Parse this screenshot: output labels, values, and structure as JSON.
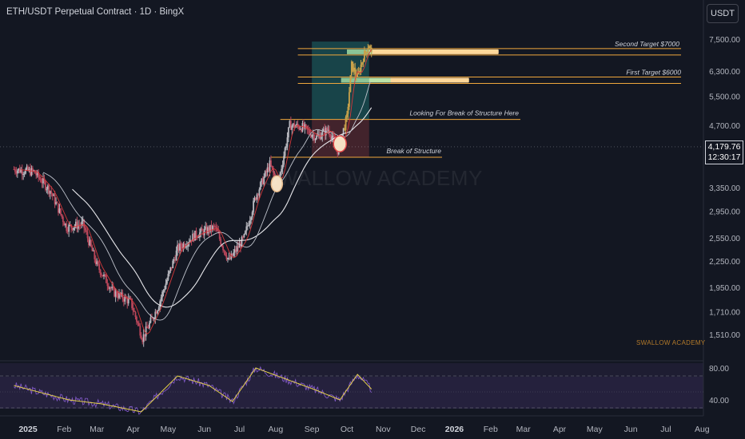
{
  "header": {
    "title": "ETH/USDT Perpetual Contract · 1D · BingX",
    "currency": "USDT"
  },
  "last_price": {
    "value": "4,179.76",
    "countdown": "12:30:17"
  },
  "watermark": "SWALLOW ACADEMY",
  "signature": "SWALLOW ACADEMY",
  "annotations": {
    "second_target": "Second Target $7000",
    "first_target": "First Target $6000",
    "looking_bos": "Looking For Break of Structure Here",
    "bos": "Break of Structure"
  },
  "colors": {
    "background": "#131722",
    "up": "#26a69a",
    "down": "#ef5350",
    "target_line": "#f0a73c",
    "rsi": "#7e57c2",
    "rsi_ma": "#e6d24a"
  },
  "chart_data": [
    {
      "type": "candlestick",
      "title": "ETH/USDT Perpetual Contract · 1D · BingX",
      "x_ticks": [
        "2025",
        "Feb",
        "Mar",
        "Apr",
        "May",
        "Jun",
        "Jul",
        "Aug",
        "Sep",
        "Oct",
        "Nov",
        "Dec",
        "2026",
        "Feb",
        "Mar",
        "Apr",
        "May",
        "Jun",
        "Jul",
        "Aug"
      ],
      "y_ticks": [
        "7,500.00",
        "6,300.00",
        "5,500.00",
        "4,700.00",
        "3,350.00",
        "2,950.00",
        "2,550.00",
        "2,250.00",
        "1,950.00",
        "1,710.00",
        "1,510.00"
      ],
      "y_scale": "log",
      "close_path": [
        {
          "date": "2024-12-20",
          "close": 3700
        },
        {
          "date": "2025-01-06",
          "close": 3650
        },
        {
          "date": "2025-01-20",
          "close": 3300
        },
        {
          "date": "2025-02-03",
          "close": 2700
        },
        {
          "date": "2025-02-17",
          "close": 2750
        },
        {
          "date": "2025-03-01",
          "close": 2200
        },
        {
          "date": "2025-03-15",
          "close": 1900
        },
        {
          "date": "2025-03-30",
          "close": 1800
        },
        {
          "date": "2025-04-09",
          "close": 1480
        },
        {
          "date": "2025-04-22",
          "close": 1750
        },
        {
          "date": "2025-05-09",
          "close": 2400
        },
        {
          "date": "2025-05-25",
          "close": 2600
        },
        {
          "date": "2025-06-10",
          "close": 2700
        },
        {
          "date": "2025-06-22",
          "close": 2250
        },
        {
          "date": "2025-07-05",
          "close": 2550
        },
        {
          "date": "2025-07-15",
          "close": 3200
        },
        {
          "date": "2025-07-27",
          "close": 3800
        },
        {
          "date": "2025-08-03",
          "close": 3400
        },
        {
          "date": "2025-08-13",
          "close": 4700
        },
        {
          "date": "2025-08-24",
          "close": 4650
        },
        {
          "date": "2025-09-05",
          "close": 4400
        },
        {
          "date": "2025-09-15",
          "close": 4600
        },
        {
          "date": "2025-09-23",
          "close": 4100
        },
        {
          "date": "2025-10-01",
          "close": 4900
        },
        {
          "date": "2025-10-05",
          "close": 6500
        },
        {
          "date": "2025-10-10",
          "close": 6100
        },
        {
          "date": "2025-10-15",
          "close": 6800
        },
        {
          "date": "2025-10-20",
          "close": 7300
        },
        {
          "date": "2025-10-23",
          "close": 6700
        }
      ],
      "levels": [
        {
          "label": "Second Target $7000",
          "price": 7000
        },
        {
          "label": "First Target $6000",
          "price": 6000
        },
        {
          "label": "Looking For Break of Structure Here",
          "price": 4850
        },
        {
          "label": "Break of Structure",
          "price": 3950
        }
      ],
      "last_price": 4179.76
    },
    {
      "type": "line",
      "title": "RSI",
      "y_ticks": [
        "80.00",
        "40.00"
      ],
      "levels": [
        70,
        30
      ],
      "rsi_path": [
        {
          "date": "2024-12-20",
          "value": 58
        },
        {
          "date": "2025-01-15",
          "value": 48
        },
        {
          "date": "2025-02-05",
          "value": 40
        },
        {
          "date": "2025-03-05",
          "value": 35
        },
        {
          "date": "2025-04-08",
          "value": 25
        },
        {
          "date": "2025-05-09",
          "value": 70
        },
        {
          "date": "2025-06-05",
          "value": 58
        },
        {
          "date": "2025-06-25",
          "value": 38
        },
        {
          "date": "2025-07-15",
          "value": 80
        },
        {
          "date": "2025-08-10",
          "value": 66
        },
        {
          "date": "2025-09-05",
          "value": 52
        },
        {
          "date": "2025-09-25",
          "value": 40
        },
        {
          "date": "2025-10-10",
          "value": 72
        },
        {
          "date": "2025-10-23",
          "value": 52
        }
      ]
    }
  ]
}
